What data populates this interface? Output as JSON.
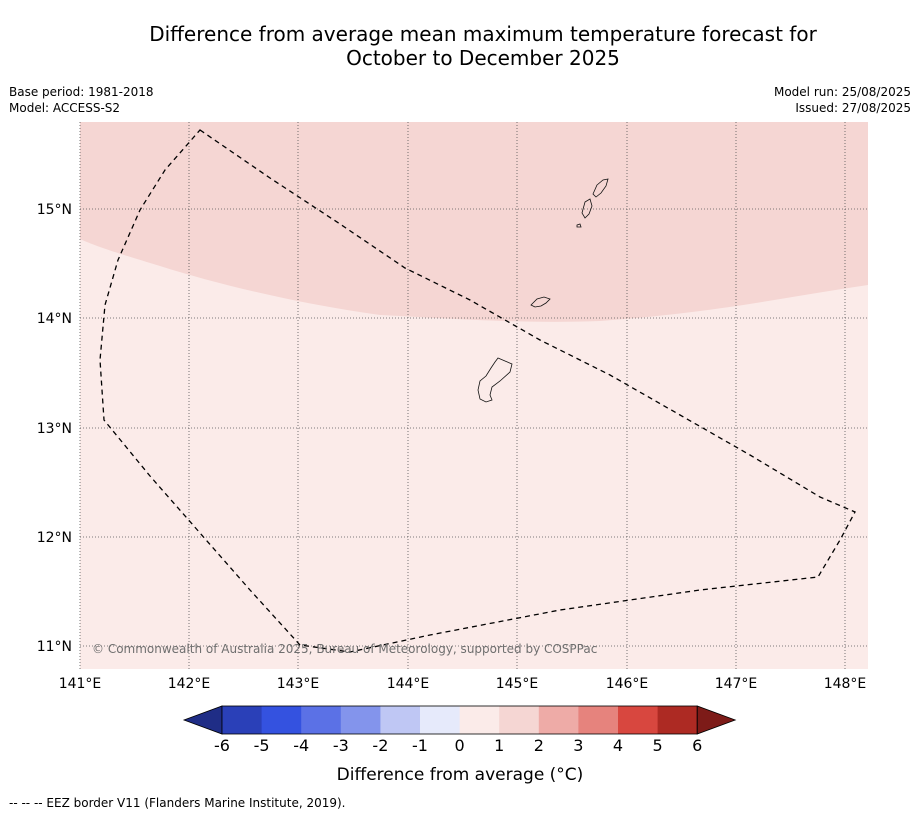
{
  "title_line1": "Difference from average mean maximum temperature forecast for",
  "title_line2": "October to December 2025",
  "meta": {
    "base_period": "Base period: 1981-2018",
    "model": "Model: ACCESS-S2",
    "model_run": "Model run: 25/08/2025",
    "issued": "Issued: 27/08/2025"
  },
  "map": {
    "lat_labels": [
      "15°N",
      "14°N",
      "13°N",
      "12°N",
      "11°N"
    ],
    "lon_labels": [
      "141°E",
      "142°E",
      "143°E",
      "144°E",
      "145°E",
      "146°E",
      "147°E",
      "148°E"
    ],
    "copyright": "© Commonwealth of Australia 2025, Bureau of Meteorology, supported by COSPPac",
    "fill_colors": {
      "upper_zone": "#f5d6d3",
      "lower_zone": "#fbebe9"
    }
  },
  "colorbar": {
    "labels": [
      "-6",
      "-5",
      "-4",
      "-3",
      "-2",
      "-1",
      "0",
      "1",
      "2",
      "3",
      "4",
      "5",
      "6"
    ],
    "colors": [
      "#1f2d86",
      "#2a40b8",
      "#3452e0",
      "#5b71e6",
      "#8394ec",
      "#bfc7f4",
      "#e6eafb",
      "#fbebe9",
      "#f5d6d3",
      "#eeaba7",
      "#e6837d",
      "#d8473f",
      "#ad2a23",
      "#7d1b18"
    ],
    "title": "Difference from average (°C)"
  },
  "footnote": "--  --  -- EEZ border V11 (Flanders Marine Institute, 2019)."
}
